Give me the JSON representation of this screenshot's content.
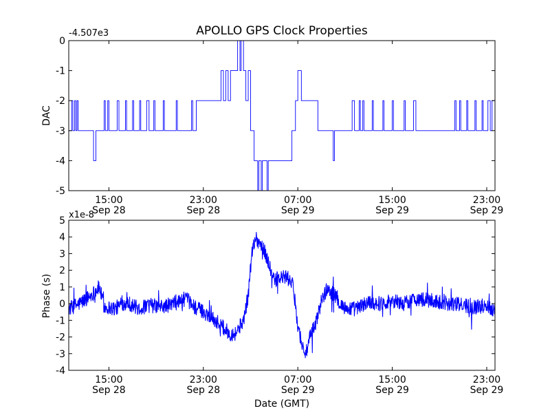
{
  "chart_data": [
    {
      "type": "line",
      "title": "APOLLO GPS Clock Properties",
      "ylabel": "DAC",
      "offset_label": "-4.507e3",
      "xlabel": "",
      "x_ticks": [
        {
          "time": "15:00",
          "date": "Sep 28"
        },
        {
          "time": "23:00",
          "date": "Sep 28"
        },
        {
          "time": "07:00",
          "date": "Sep 29"
        },
        {
          "time": "15:00",
          "date": "Sep 29"
        },
        {
          "time": "23:00",
          "date": "Sep 29"
        }
      ],
      "x_tick_hours": [
        15,
        23,
        31,
        39,
        47
      ],
      "xlim_hours": [
        11.6,
        47.7
      ],
      "ylim": [
        -5,
        0
      ],
      "yticks": [
        0,
        -1,
        -2,
        -3,
        -4,
        -5
      ],
      "ytick_labels": [
        "0",
        "-1",
        "-2",
        "-3",
        "-4",
        "-5"
      ],
      "series": [
        {
          "name": "DAC",
          "color": "#0000ff",
          "points": [
            [
              11.6,
              -3
            ],
            [
              11.85,
              -3
            ],
            [
              11.85,
              -2
            ],
            [
              11.95,
              -2
            ],
            [
              11.95,
              -3
            ],
            [
              12.1,
              -3
            ],
            [
              12.1,
              -2
            ],
            [
              12.2,
              -2
            ],
            [
              12.2,
              -3
            ],
            [
              12.3,
              -3
            ],
            [
              12.3,
              -2
            ],
            [
              12.4,
              -2
            ],
            [
              12.4,
              -3
            ],
            [
              13.7,
              -3
            ],
            [
              13.7,
              -4
            ],
            [
              13.9,
              -4
            ],
            [
              13.9,
              -3
            ],
            [
              14.6,
              -3
            ],
            [
              14.6,
              -2
            ],
            [
              14.7,
              -2
            ],
            [
              14.7,
              -3
            ],
            [
              14.9,
              -3
            ],
            [
              14.9,
              -2
            ],
            [
              15.0,
              -2
            ],
            [
              15.0,
              -3
            ],
            [
              15.7,
              -3
            ],
            [
              15.7,
              -2
            ],
            [
              15.85,
              -2
            ],
            [
              15.85,
              -3
            ],
            [
              16.4,
              -3
            ],
            [
              16.4,
              -2
            ],
            [
              16.5,
              -2
            ],
            [
              16.5,
              -3
            ],
            [
              17.0,
              -3
            ],
            [
              17.0,
              -2
            ],
            [
              17.1,
              -2
            ],
            [
              17.1,
              -3
            ],
            [
              17.6,
              -3
            ],
            [
              17.6,
              -2
            ],
            [
              17.7,
              -2
            ],
            [
              17.7,
              -3
            ],
            [
              18.2,
              -3
            ],
            [
              18.2,
              -2
            ],
            [
              18.4,
              -2
            ],
            [
              18.4,
              -3
            ],
            [
              18.8,
              -3
            ],
            [
              18.8,
              -2
            ],
            [
              18.9,
              -2
            ],
            [
              18.9,
              -3
            ],
            [
              19.6,
              -3
            ],
            [
              19.6,
              -2
            ],
            [
              19.7,
              -2
            ],
            [
              19.7,
              -3
            ],
            [
              20.7,
              -3
            ],
            [
              20.7,
              -2
            ],
            [
              20.8,
              -2
            ],
            [
              20.8,
              -3
            ],
            [
              22.0,
              -3
            ],
            [
              22.0,
              -2
            ],
            [
              22.1,
              -2
            ],
            [
              22.1,
              -3
            ],
            [
              22.4,
              -3
            ],
            [
              22.4,
              -2
            ],
            [
              24.5,
              -2
            ],
            [
              24.5,
              -1
            ],
            [
              24.7,
              -1
            ],
            [
              24.7,
              -2
            ],
            [
              24.9,
              -2
            ],
            [
              24.9,
              -1
            ],
            [
              25.1,
              -1
            ],
            [
              25.1,
              -2
            ],
            [
              25.3,
              -2
            ],
            [
              25.3,
              -1
            ],
            [
              25.9,
              -1
            ],
            [
              25.9,
              0
            ],
            [
              26.1,
              0
            ],
            [
              26.1,
              -1
            ],
            [
              26.2,
              -1
            ],
            [
              26.2,
              0
            ],
            [
              26.4,
              0
            ],
            [
              26.4,
              -1
            ],
            [
              26.6,
              -1
            ],
            [
              26.6,
              -2
            ],
            [
              26.8,
              -2
            ],
            [
              26.8,
              -1
            ],
            [
              27.0,
              -1
            ],
            [
              27.0,
              -3
            ],
            [
              27.3,
              -3
            ],
            [
              27.3,
              -4
            ],
            [
              27.6,
              -4
            ],
            [
              27.6,
              -5
            ],
            [
              27.7,
              -5
            ],
            [
              27.7,
              -4
            ],
            [
              27.9,
              -4
            ],
            [
              27.9,
              -5
            ],
            [
              28.0,
              -5
            ],
            [
              28.0,
              -4
            ],
            [
              28.4,
              -4
            ],
            [
              28.4,
              -5
            ],
            [
              28.5,
              -5
            ],
            [
              28.5,
              -4
            ],
            [
              30.5,
              -4
            ],
            [
              30.5,
              -3
            ],
            [
              30.8,
              -3
            ],
            [
              30.8,
              -2
            ],
            [
              31.0,
              -2
            ],
            [
              31.0,
              -1
            ],
            [
              31.3,
              -1
            ],
            [
              31.3,
              -2
            ],
            [
              32.7,
              -2
            ],
            [
              32.7,
              -3
            ],
            [
              34.0,
              -3
            ],
            [
              34.0,
              -4
            ],
            [
              34.1,
              -4
            ],
            [
              34.1,
              -3
            ],
            [
              35.6,
              -3
            ],
            [
              35.6,
              -2
            ],
            [
              35.8,
              -2
            ],
            [
              35.8,
              -3
            ],
            [
              36.2,
              -3
            ],
            [
              36.2,
              -2
            ],
            [
              36.3,
              -2
            ],
            [
              36.3,
              -3
            ],
            [
              36.5,
              -3
            ],
            [
              36.5,
              -2
            ],
            [
              36.6,
              -2
            ],
            [
              36.6,
              -3
            ],
            [
              37.3,
              -3
            ],
            [
              37.3,
              -2
            ],
            [
              37.4,
              -2
            ],
            [
              37.4,
              -3
            ],
            [
              38.2,
              -3
            ],
            [
              38.2,
              -2
            ],
            [
              38.3,
              -2
            ],
            [
              38.3,
              -3
            ],
            [
              39.0,
              -3
            ],
            [
              39.0,
              -2
            ],
            [
              39.1,
              -2
            ],
            [
              39.1,
              -3
            ],
            [
              40.0,
              -3
            ],
            [
              40.0,
              -2
            ],
            [
              40.1,
              -2
            ],
            [
              40.1,
              -3
            ],
            [
              40.8,
              -3
            ],
            [
              40.8,
              -2
            ],
            [
              41.0,
              -2
            ],
            [
              41.0,
              -3
            ],
            [
              44.3,
              -3
            ],
            [
              44.3,
              -2
            ],
            [
              44.4,
              -2
            ],
            [
              44.4,
              -3
            ],
            [
              44.7,
              -3
            ],
            [
              44.7,
              -2
            ],
            [
              44.8,
              -2
            ],
            [
              44.8,
              -3
            ],
            [
              45.3,
              -3
            ],
            [
              45.3,
              -2
            ],
            [
              45.4,
              -2
            ],
            [
              45.4,
              -3
            ],
            [
              46.0,
              -3
            ],
            [
              46.0,
              -2
            ],
            [
              46.1,
              -2
            ],
            [
              46.1,
              -3
            ],
            [
              46.6,
              -3
            ],
            [
              46.6,
              -2
            ],
            [
              46.7,
              -2
            ],
            [
              46.7,
              -3
            ],
            [
              47.1,
              -3
            ],
            [
              47.1,
              -2
            ],
            [
              47.3,
              -2
            ],
            [
              47.3,
              -3
            ],
            [
              47.45,
              -3
            ],
            [
              47.45,
              -2
            ],
            [
              47.7,
              -2
            ]
          ]
        }
      ]
    },
    {
      "type": "line",
      "title": "",
      "ylabel": "Phase (s)",
      "offset_label": "x1e-8",
      "xlabel": "Date (GMT)",
      "x_ticks": [
        {
          "time": "15:00",
          "date": "Sep 28"
        },
        {
          "time": "23:00",
          "date": "Sep 28"
        },
        {
          "time": "07:00",
          "date": "Sep 29"
        },
        {
          "time": "15:00",
          "date": "Sep 29"
        },
        {
          "time": "23:00",
          "date": "Sep 29"
        }
      ],
      "x_tick_hours": [
        15,
        23,
        31,
        39,
        47
      ],
      "xlim_hours": [
        11.6,
        47.7
      ],
      "ylim": [
        -4,
        5
      ],
      "yticks": [
        5,
        4,
        3,
        2,
        1,
        0,
        -1,
        -2,
        -3,
        -4
      ],
      "ytick_labels": [
        "5",
        "4",
        "3",
        "2",
        "1",
        "0",
        "-1",
        "-2",
        "-3",
        "-4"
      ],
      "noise_amplitude": 0.45,
      "series": [
        {
          "name": "Phase",
          "color": "#0000ff",
          "trend": [
            [
              11.6,
              -0.3
            ],
            [
              12.5,
              0
            ],
            [
              13.5,
              0.5
            ],
            [
              14.2,
              1.0
            ],
            [
              14.6,
              -0.2
            ],
            [
              15.5,
              -0.3
            ],
            [
              16.5,
              0.1
            ],
            [
              17.5,
              -0.3
            ],
            [
              18.5,
              -0.1
            ],
            [
              19.5,
              -0.2
            ],
            [
              20.5,
              0
            ],
            [
              21.5,
              0.3
            ],
            [
              22.5,
              -0.3
            ],
            [
              23.5,
              -0.7
            ],
            [
              24.5,
              -1.3
            ],
            [
              25.2,
              -1.8
            ],
            [
              25.7,
              -1.8
            ],
            [
              26.4,
              -1.0
            ],
            [
              26.8,
              0.5
            ],
            [
              27.1,
              3.0
            ],
            [
              27.4,
              4.0
            ],
            [
              27.8,
              3.6
            ],
            [
              28.2,
              3.1
            ],
            [
              28.6,
              2.3
            ],
            [
              28.9,
              1.4
            ],
            [
              29.4,
              1.5
            ],
            [
              30.0,
              1.6
            ],
            [
              30.5,
              1.3
            ],
            [
              30.8,
              0
            ],
            [
              31.0,
              -1.3
            ],
            [
              31.4,
              -2.6
            ],
            [
              31.7,
              -3.0
            ],
            [
              32.0,
              -2.1
            ],
            [
              32.6,
              -1.0
            ],
            [
              33.0,
              0.2
            ],
            [
              33.5,
              0.9
            ],
            [
              34.0,
              0.6
            ],
            [
              34.5,
              0.1
            ],
            [
              35.0,
              -0.3
            ],
            [
              36.0,
              -0.3
            ],
            [
              37.0,
              0.1
            ],
            [
              38.0,
              0
            ],
            [
              39.0,
              0.2
            ],
            [
              40.0,
              0
            ],
            [
              41.0,
              0.3
            ],
            [
              42.0,
              0.2
            ],
            [
              43.0,
              0.1
            ],
            [
              44.0,
              0
            ],
            [
              45.0,
              -0.1
            ],
            [
              46.0,
              -0.2
            ],
            [
              47.0,
              -0.1
            ],
            [
              47.7,
              -0.4
            ]
          ]
        }
      ]
    }
  ]
}
